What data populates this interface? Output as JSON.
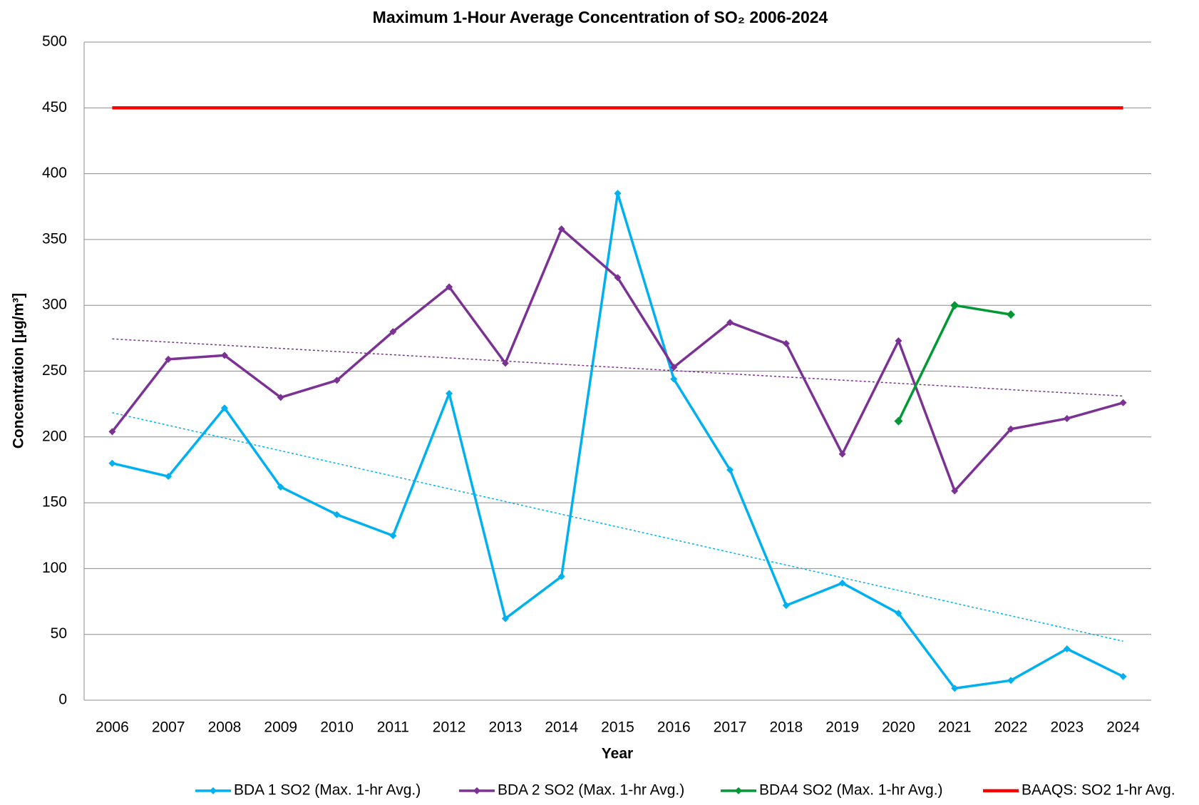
{
  "chart_data": {
    "type": "line",
    "title": "Maximum 1-Hour Average Concentration of SO₂ 2006-2024",
    "x_label": "Year",
    "y_label": "Concentration [µg/m³]",
    "categories": [
      "2006",
      "2007",
      "2008",
      "2009",
      "2010",
      "2011",
      "2012",
      "2013",
      "2014",
      "2015",
      "2016",
      "2017",
      "2018",
      "2019",
      "2020",
      "2021",
      "2022",
      "2023",
      "2024"
    ],
    "series": [
      {
        "name": "BDA 1 SO2 (Max. 1-hr Avg.)",
        "color": "#00b0f0",
        "marker": "diamond",
        "trendline": true,
        "values": [
          180,
          170,
          222,
          162,
          141,
          125,
          233,
          62,
          94,
          385,
          244,
          175,
          72,
          89,
          66,
          9,
          15,
          39,
          18
        ]
      },
      {
        "name": "BDA 2 SO2 (Max. 1-hr Avg.)",
        "color": "#7b3294",
        "marker": "diamond",
        "trendline": true,
        "values": [
          204,
          259,
          262,
          230,
          243,
          280,
          314,
          256,
          358,
          321,
          253,
          287,
          271,
          187,
          273,
          159,
          206,
          214,
          226
        ]
      },
      {
        "name": "BDA4 SO2 (Max. 1-hr Avg.)",
        "color": "#009933",
        "marker": "diamond",
        "trendline": false,
        "values": [
          null,
          null,
          null,
          null,
          null,
          null,
          null,
          null,
          null,
          null,
          null,
          null,
          null,
          null,
          212,
          300,
          293,
          null,
          null
        ]
      },
      {
        "name": "BAAQS: SO2 1-hr Avg.",
        "color": "#ff0000",
        "marker": "none",
        "trendline": false,
        "values": [
          450,
          450,
          450,
          450,
          450,
          450,
          450,
          450,
          450,
          450,
          450,
          450,
          450,
          450,
          450,
          450,
          450,
          450,
          450
        ]
      }
    ],
    "ylim": [
      0,
      500
    ],
    "yticks": [
      0,
      50,
      100,
      150,
      200,
      250,
      300,
      350,
      400,
      450,
      500
    ],
    "grid": true,
    "legend": "bottom"
  }
}
